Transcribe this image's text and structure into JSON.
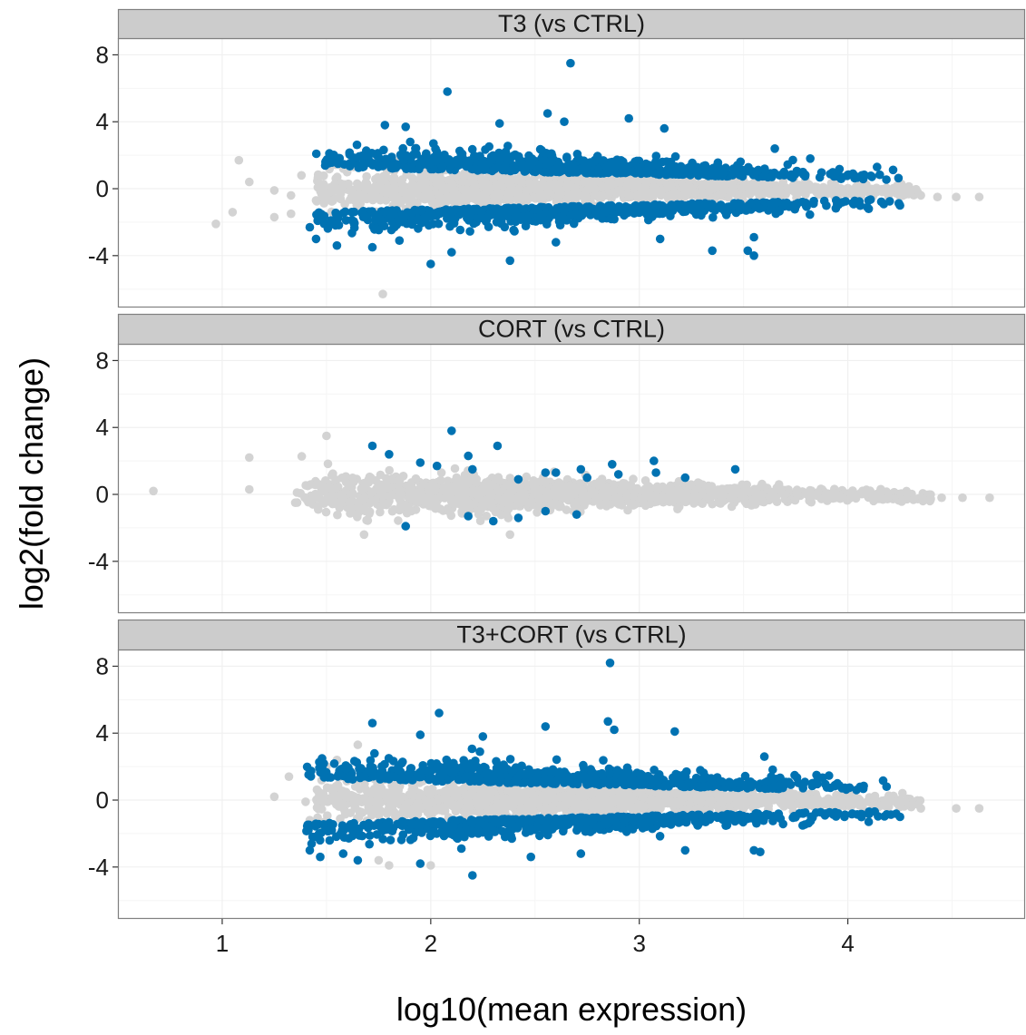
{
  "chart_data": {
    "type": "scatter",
    "xlabel": "log10(mean expression)",
    "ylabel": "log2(fold change)",
    "xlim": [
      0.5,
      4.85
    ],
    "ylim": [
      -7.1,
      9.0
    ],
    "x_ticks": [
      1,
      2,
      3,
      4
    ],
    "y_ticks": [
      8,
      4,
      0,
      -4
    ],
    "y_tick_labels": [
      "8",
      "4",
      "0",
      "-4"
    ],
    "grid": true,
    "colors": {
      "significant": "#0072B2",
      "not_significant": "#D3D3D3",
      "strip_fill": "#CCCCCC",
      "strip_border": "#808080",
      "panel_border": "#808080",
      "grid": "#F0F0F0"
    },
    "panels": [
      {
        "title": "T3 (vs CTRL)",
        "background_points": [
          [
            0.97,
            -2.1
          ],
          [
            1.05,
            -1.4
          ],
          [
            1.08,
            1.7
          ],
          [
            1.13,
            0.4
          ],
          [
            1.25,
            -1.7
          ],
          [
            1.25,
            -0.1
          ],
          [
            1.33,
            -1.5
          ],
          [
            1.33,
            -0.4
          ],
          [
            1.38,
            0.8
          ],
          [
            1.45,
            -0.7
          ],
          [
            1.47,
            0.3
          ],
          [
            1.58,
            1.2
          ],
          [
            1.63,
            1.3
          ],
          [
            1.77,
            -6.3
          ],
          [
            4.35,
            -0.4
          ],
          [
            4.43,
            -0.5
          ],
          [
            4.52,
            -0.5
          ],
          [
            4.63,
            -0.5
          ]
        ],
        "background_band": {
          "x_range": [
            1.45,
            4.35
          ],
          "half_width_start": 1.2,
          "half_width_end": 0.3
        },
        "significant_band": {
          "x_range": [
            1.45,
            4.25
          ],
          "up_offset_start": 1.3,
          "up_offset_end": 0.5,
          "up_spread_start": 1.4,
          "up_spread_end": 0.6,
          "down_offset_start": -1.4,
          "down_offset_end": -0.6,
          "down_spread_start": 1.3,
          "down_spread_end": 0.5
        },
        "outliers": [
          [
            2.67,
            7.5
          ],
          [
            2.08,
            5.8
          ],
          [
            2.56,
            4.5
          ],
          [
            2.95,
            4.2
          ],
          [
            2.64,
            4.0
          ],
          [
            2.33,
            3.9
          ],
          [
            1.78,
            3.8
          ],
          [
            1.88,
            3.7
          ],
          [
            3.12,
            3.6
          ],
          [
            3.65,
            2.4
          ],
          [
            3.82,
            1.8
          ],
          [
            3.95,
            1.0
          ],
          [
            1.42,
            -2.3
          ],
          [
            1.45,
            -3.0
          ],
          [
            1.55,
            -3.4
          ],
          [
            1.72,
            -3.5
          ],
          [
            1.85,
            -3.1
          ],
          [
            2.0,
            -4.5
          ],
          [
            2.1,
            -3.8
          ],
          [
            2.38,
            -4.3
          ],
          [
            2.6,
            -3.2
          ],
          [
            3.1,
            -3.0
          ],
          [
            3.35,
            -3.7
          ],
          [
            3.52,
            -3.7
          ],
          [
            3.55,
            -4.0
          ],
          [
            3.55,
            -2.9
          ],
          [
            4.1,
            -1.2
          ],
          [
            4.25,
            -1.0
          ]
        ]
      },
      {
        "title": "CORT (vs CTRL)",
        "background_points": [
          [
            0.67,
            0.2
          ],
          [
            1.13,
            2.2
          ],
          [
            1.13,
            0.3
          ],
          [
            1.5,
            3.5
          ],
          [
            1.68,
            -2.4
          ],
          [
            2.38,
            -2.4
          ],
          [
            4.45,
            -0.2
          ],
          [
            4.55,
            -0.2
          ],
          [
            4.68,
            -0.2
          ]
        ],
        "background_band": {
          "x_range": [
            1.35,
            4.4
          ],
          "half_width_start": 1.3,
          "half_width_end": 0.25
        },
        "significant_band": null,
        "outliers": [
          [
            1.72,
            2.9
          ],
          [
            1.8,
            2.4
          ],
          [
            1.95,
            1.9
          ],
          [
            2.03,
            1.7
          ],
          [
            2.1,
            3.8
          ],
          [
            2.18,
            2.3
          ],
          [
            2.2,
            1.5
          ],
          [
            2.32,
            2.9
          ],
          [
            2.42,
            0.9
          ],
          [
            2.55,
            1.3
          ],
          [
            2.6,
            1.3
          ],
          [
            2.72,
            1.5
          ],
          [
            2.75,
            1.0
          ],
          [
            2.87,
            1.8
          ],
          [
            2.9,
            1.2
          ],
          [
            3.07,
            2.0
          ],
          [
            3.08,
            1.3
          ],
          [
            3.22,
            1.0
          ],
          [
            3.46,
            1.5
          ],
          [
            1.88,
            -1.9
          ],
          [
            2.18,
            -1.3
          ],
          [
            2.3,
            -1.6
          ],
          [
            2.42,
            -1.4
          ],
          [
            2.55,
            -1.0
          ],
          [
            2.7,
            -1.2
          ]
        ]
      },
      {
        "title": "T3+CORT (vs CTRL)",
        "background_points": [
          [
            1.25,
            0.2
          ],
          [
            1.32,
            1.4
          ],
          [
            1.4,
            -0.1
          ],
          [
            1.42,
            -1.2
          ],
          [
            1.5,
            2.0
          ],
          [
            1.55,
            2.4
          ],
          [
            1.65,
            3.3
          ],
          [
            1.75,
            -3.6
          ],
          [
            1.8,
            -3.9
          ],
          [
            2.0,
            -3.9
          ],
          [
            4.35,
            -0.5
          ],
          [
            4.52,
            -0.5
          ],
          [
            4.63,
            -0.5
          ]
        ],
        "background_band": {
          "x_range": [
            1.45,
            4.35
          ],
          "half_width_start": 1.2,
          "half_width_end": 0.3
        },
        "significant_band": {
          "x_range": [
            1.4,
            4.25
          ],
          "up_offset_start": 1.3,
          "up_offset_end": 0.5,
          "up_spread_start": 1.4,
          "up_spread_end": 0.6,
          "down_offset_start": -1.4,
          "down_offset_end": -0.6,
          "down_spread_start": 1.3,
          "down_spread_end": 0.5
        },
        "outliers": [
          [
            2.86,
            8.2
          ],
          [
            2.04,
            5.2
          ],
          [
            1.72,
            4.6
          ],
          [
            2.85,
            4.7
          ],
          [
            2.55,
            4.4
          ],
          [
            2.88,
            4.2
          ],
          [
            3.17,
            4.1
          ],
          [
            1.95,
            3.9
          ],
          [
            2.25,
            3.8
          ],
          [
            3.6,
            2.6
          ],
          [
            3.85,
            1.5
          ],
          [
            3.95,
            1.0
          ],
          [
            1.42,
            -3.0
          ],
          [
            1.47,
            -3.4
          ],
          [
            1.58,
            -3.2
          ],
          [
            1.65,
            -3.6
          ],
          [
            1.95,
            -3.8
          ],
          [
            2.2,
            -4.5
          ],
          [
            2.48,
            -3.4
          ],
          [
            2.72,
            -3.2
          ],
          [
            3.22,
            -3.0
          ],
          [
            3.55,
            -3.0
          ],
          [
            3.58,
            -3.1
          ],
          [
            4.1,
            -1.3
          ],
          [
            4.25,
            -1.0
          ]
        ]
      }
    ]
  }
}
